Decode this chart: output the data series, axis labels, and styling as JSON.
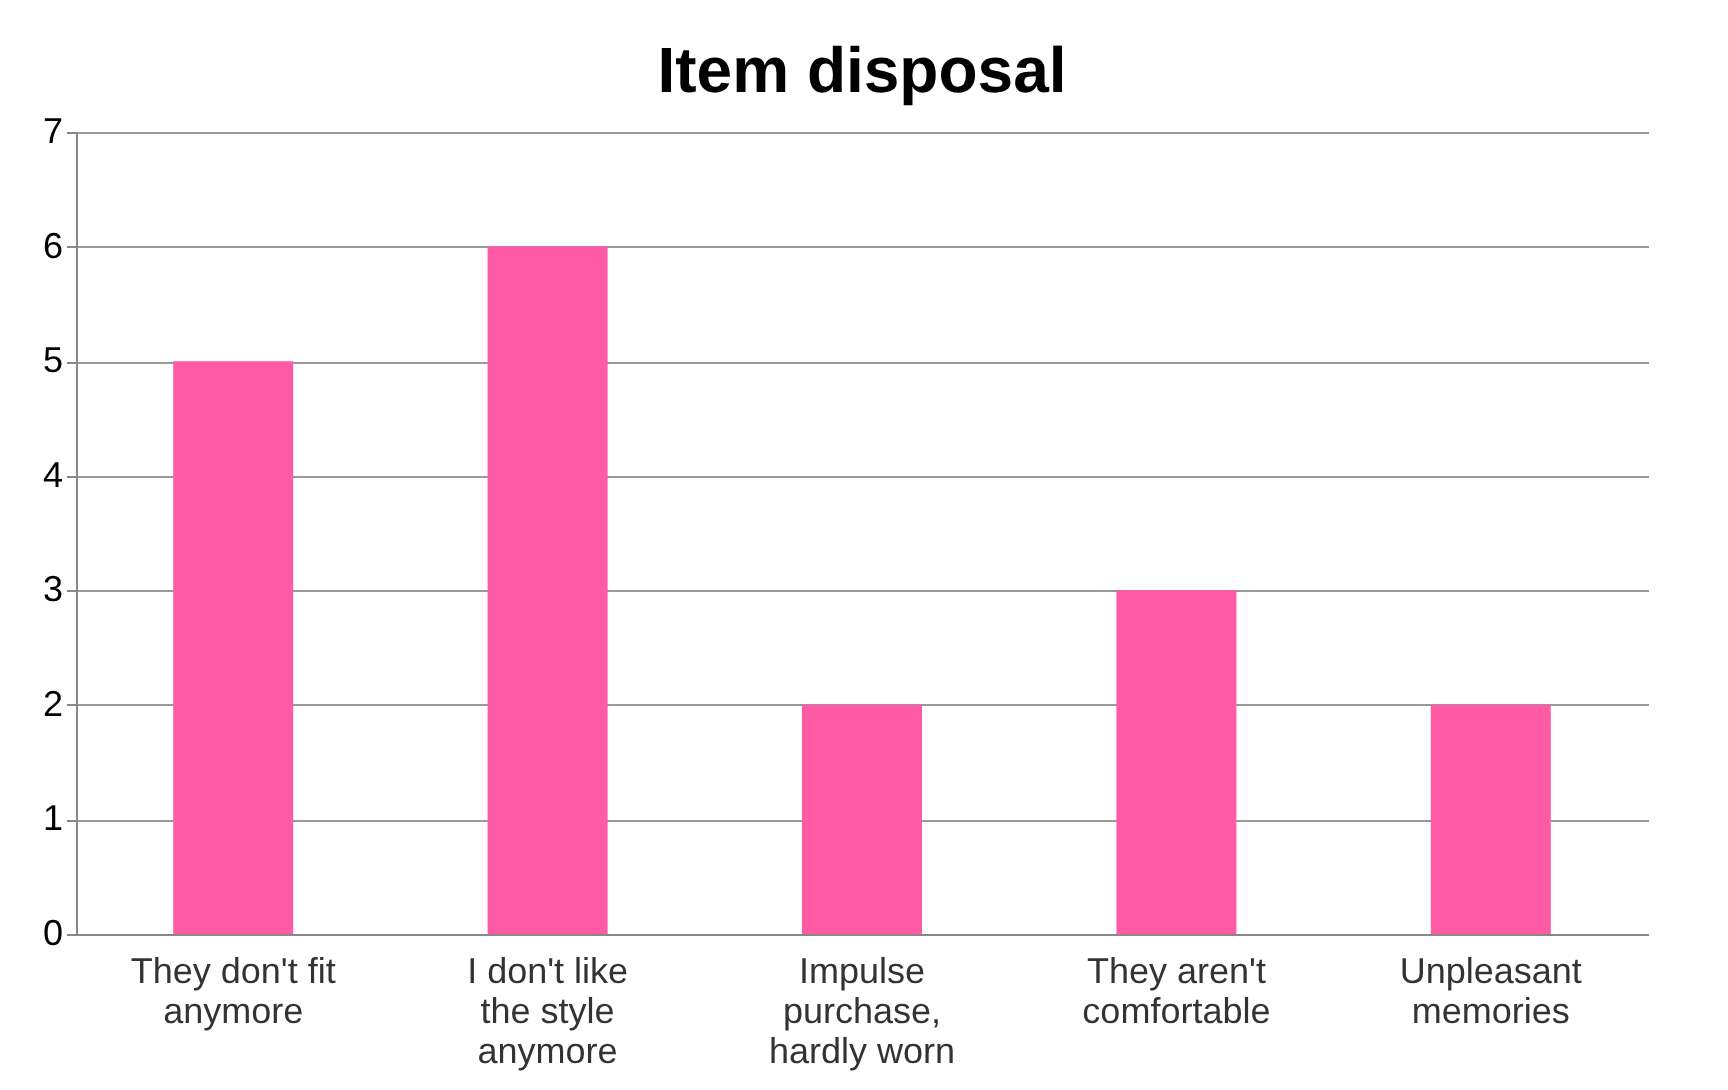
{
  "chart_data": {
    "type": "bar",
    "title": "Item disposal",
    "categories": [
      "They don't fit anymore",
      "I don't like the style anymore",
      "Impulse purchase, hardly worn",
      "They aren't comfortable",
      "Unpleasant memories"
    ],
    "values": [
      5,
      6,
      2,
      3,
      2
    ],
    "color": "#ff5aa5",
    "ylim": [
      0,
      7
    ],
    "yticks": [
      0,
      1,
      2,
      3,
      4,
      5,
      6,
      7
    ],
    "grid": "y"
  }
}
